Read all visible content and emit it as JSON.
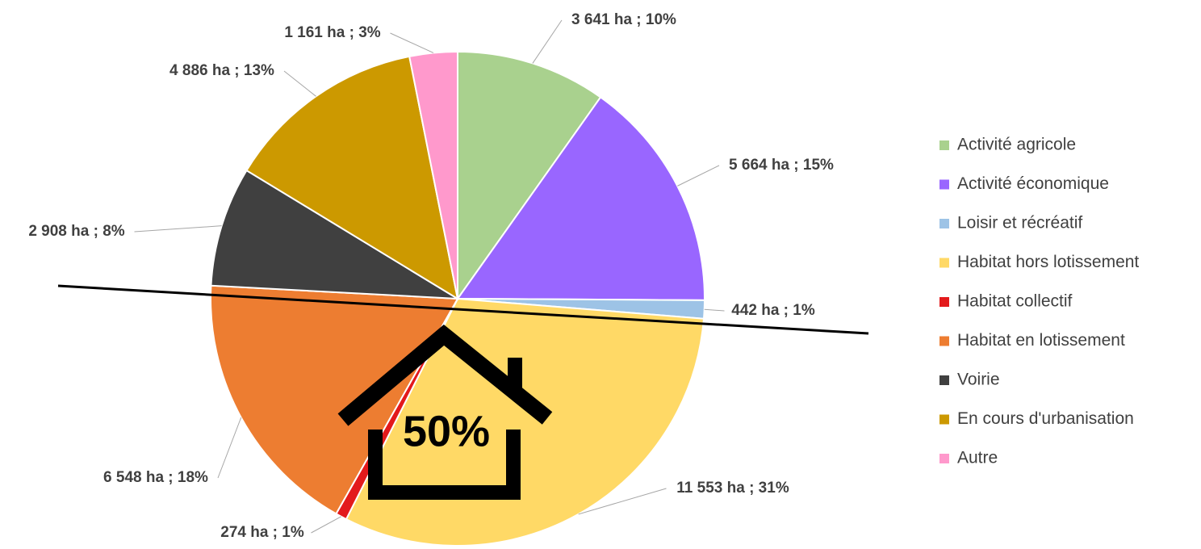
{
  "chart_data": {
    "type": "pie",
    "categories": [
      "Activité agricole",
      "Activité économique",
      "Loisir et récréatif",
      "Habitat hors lotissement",
      "Habitat collectif",
      "Habitat en lotissement",
      "Voirie",
      "En cours d'urbanisation",
      "Autre"
    ],
    "values": [
      3641,
      5664,
      442,
      11553,
      274,
      6548,
      2908,
      4886,
      1161
    ],
    "value_labels": [
      "3 641 ha ; 10%",
      "5 664 ha ; 15%",
      "442 ha ; 1%",
      "11 553 ha ; 31%",
      "274 ha ; 1%",
      "6 548 ha ; 18%",
      "2 908 ha ; 8%",
      "4 886 ha ; 13%",
      "1 161 ha ; 3%"
    ],
    "colors": [
      "#a9d18e",
      "#9966ff",
      "#9dc3e6",
      "#ffd966",
      "#e31a1c",
      "#ed7d31",
      "#404040",
      "#cc9900",
      "#ff99cc"
    ],
    "legend": "right",
    "annotation": "50%"
  }
}
